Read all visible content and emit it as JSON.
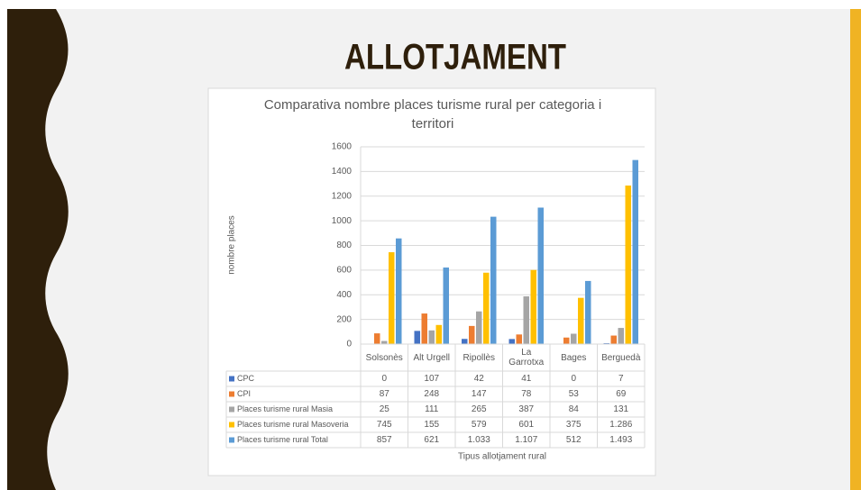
{
  "title": "ALLOTJAMENT",
  "chart_data": {
    "type": "bar",
    "title": "Comparativa nombre places turisme rural per categoria i territori",
    "y_label": "nombre places",
    "x_label": "Tipus allotjament rural",
    "categories": [
      "Solsonès",
      "Alt Urgell",
      "Ripollès",
      "La Garrotxa",
      "Bages",
      "Berguedà"
    ],
    "ylim": [
      0,
      1600
    ],
    "yticks": [
      0,
      200,
      400,
      600,
      800,
      1000,
      1200,
      1400,
      1600
    ],
    "grid": true,
    "series": [
      {
        "name": "CPC",
        "color": "#4472c4",
        "values": [
          0,
          107,
          42,
          41,
          0,
          7
        ]
      },
      {
        "name": "CPI",
        "color": "#ed7d31",
        "values": [
          87,
          248,
          147,
          78,
          53,
          69
        ]
      },
      {
        "name": "Places turisme rural Masia",
        "color": "#a5a5a5",
        "values": [
          25,
          111,
          265,
          387,
          84,
          131
        ]
      },
      {
        "name": "Places turisme rural Masoveria",
        "color": "#ffc000",
        "values": [
          745,
          155,
          579,
          601,
          375,
          1286
        ],
        "value_labels": [
          "745",
          "155",
          "579",
          "601",
          "375",
          "1.286"
        ]
      },
      {
        "name": "Places turisme rural Total",
        "color": "#5b9bd5",
        "values": [
          857,
          621,
          1033,
          1107,
          512,
          1493
        ],
        "value_labels": [
          "857",
          "621",
          "1.033",
          "1.107",
          "512",
          "1.493"
        ]
      }
    ]
  }
}
